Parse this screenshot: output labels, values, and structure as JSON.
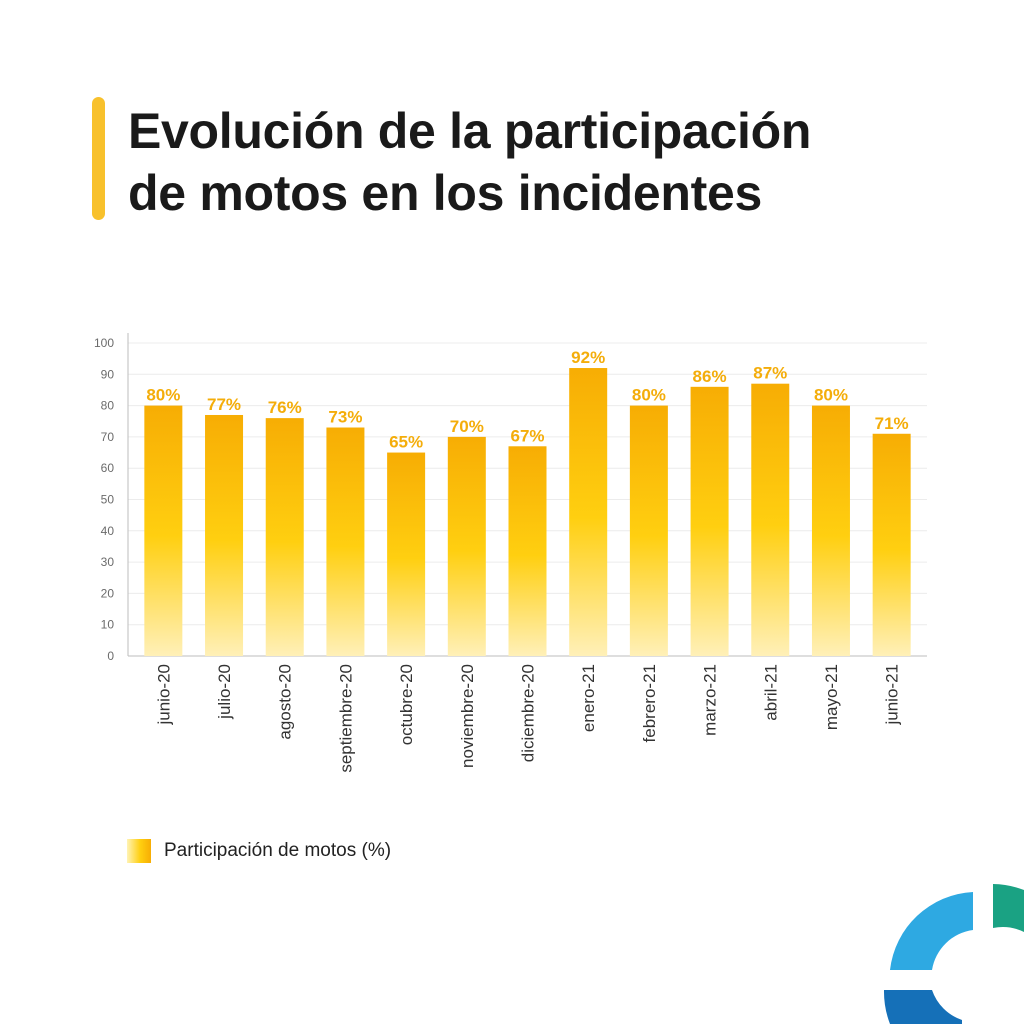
{
  "header": {
    "title_line1": "Evolución de la participación",
    "title_line2": "de motos en los incidentes"
  },
  "colors": {
    "accent": "#f8c12c",
    "bar_top": "#f7ad04",
    "bar_mid": "#ffcf10",
    "bar_bottom": "#fff0b8",
    "value_label": "#f4ad0a",
    "logo_light_blue": "#2ea9e2",
    "logo_green": "#1aa283",
    "logo_dark_blue": "#1570b8"
  },
  "chart_data": {
    "type": "bar",
    "title": "Evolución de la participación de motos en los incidentes",
    "xlabel": "",
    "ylabel": "",
    "ylim": [
      0,
      100
    ],
    "yticks": [
      0,
      10,
      20,
      30,
      40,
      50,
      60,
      70,
      80,
      90,
      100
    ],
    "grid": true,
    "legend_position": "bottom-left",
    "categories": [
      "junio-20",
      "julio-20",
      "agosto-20",
      "septiembre-20",
      "octubre-20",
      "noviembre-20",
      "diciembre-20",
      "enero-21",
      "febrero-21",
      "marzo-21",
      "abril-21",
      "mayo-21",
      "junio-21"
    ],
    "series": [
      {
        "name": "Participación de motos (%)",
        "values": [
          80,
          77,
          76,
          73,
          65,
          70,
          67,
          92,
          80,
          86,
          87,
          80,
          71
        ],
        "labels": [
          "80%",
          "77%",
          "76%",
          "73%",
          "65%",
          "70%",
          "67%",
          "92%",
          "80%",
          "86%",
          "87%",
          "80%",
          "71%"
        ]
      }
    ]
  },
  "legend": {
    "label": "Participación de motos (%)"
  },
  "logo": {
    "icon": "ring-logo-icon"
  }
}
